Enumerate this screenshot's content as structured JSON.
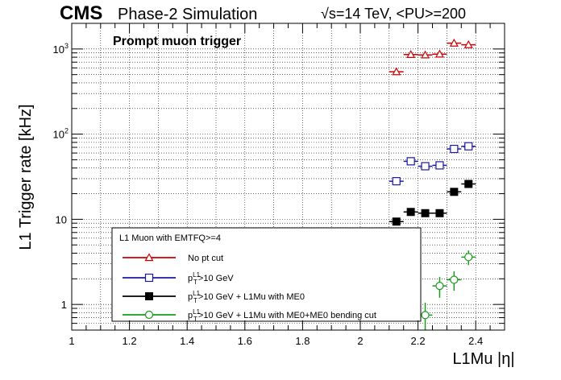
{
  "header": {
    "cms": "CMS",
    "subtitle": "Phase-2 Simulation",
    "energy_prefix": "√",
    "energy": "s=14 TeV, <PU>=200",
    "annotation": "Prompt muon trigger"
  },
  "chart_data": {
    "type": "scatter",
    "title": "Prompt muon trigger",
    "xlabel": "L1Mu |η|",
    "ylabel": "L1 Trigger rate [kHz]",
    "xlim": [
      1.0,
      2.5
    ],
    "ylim": [
      0.5,
      2000
    ],
    "ylog": true,
    "grid": true,
    "xticks": [
      1,
      1.2,
      1.4,
      1.6,
      1.8,
      2,
      2.2,
      2.4
    ],
    "xtick_labels": [
      "1",
      "1.2",
      "1.4",
      "1.6",
      "1.8",
      "2",
      "2.2",
      "2.4"
    ],
    "ytick_labels": [
      {
        "value": 1,
        "base": "1",
        "exp": ""
      },
      {
        "value": 10,
        "base": "10",
        "exp": ""
      },
      {
        "value": 100,
        "base": "10",
        "exp": "2"
      },
      {
        "value": 1000,
        "base": "10",
        "exp": "3"
      }
    ],
    "legend": {
      "title": "L1 Muon with EMTFQ>=4",
      "position": "bottom-left"
    },
    "series": [
      {
        "name": "No pt cut",
        "color": "#cc0000",
        "marker": "open-triangle",
        "x": [
          2.125,
          2.175,
          2.225,
          2.275,
          2.325,
          2.375
        ],
        "y": [
          540,
          860,
          850,
          870,
          1170,
          1120
        ],
        "yerr": [
          20,
          25,
          25,
          25,
          30,
          30
        ]
      },
      {
        "name": "p_T^L1>10 GeV",
        "legend_prefix": "p",
        "legend_sub": "T",
        "legend_sup": "L1",
        "legend_suffix": ">10 GeV",
        "color": "#1a1aa0",
        "marker": "open-square",
        "x": [
          2.125,
          2.175,
          2.225,
          2.275,
          2.325,
          2.375
        ],
        "y": [
          28,
          48,
          42,
          43,
          67,
          72
        ],
        "yerr": [
          1.5,
          2,
          2,
          2,
          3,
          3
        ]
      },
      {
        "name": "p_T^L1>10 GeV + L1Mu with ME0",
        "legend_prefix": "p",
        "legend_sub": "T",
        "legend_sup": "L1",
        "legend_suffix": ">10 GeV + L1Mu with ME0",
        "color": "#000000",
        "marker": "filled-square",
        "x": [
          2.125,
          2.175,
          2.225,
          2.275,
          2.325,
          2.375
        ],
        "y": [
          9.4,
          12.2,
          11.8,
          11.8,
          21,
          26
        ],
        "yerr": [
          0.8,
          1,
          1,
          1,
          1.5,
          1.8
        ]
      },
      {
        "name": "p_T^L1>10 GeV + L1Mu with ME0+ME0 bending cut",
        "legend_prefix": "p",
        "legend_sub": "T",
        "legend_sup": "L1",
        "legend_suffix": ">10 GeV + L1Mu with ME0+ME0 bending cut",
        "color": "#1a9a1a",
        "marker": "open-circle",
        "x": [
          2.225,
          2.275,
          2.325,
          2.375
        ],
        "y": [
          0.75,
          1.65,
          1.95,
          3.6
        ],
        "yerr": [
          0.3,
          0.45,
          0.5,
          0.7
        ]
      }
    ]
  }
}
